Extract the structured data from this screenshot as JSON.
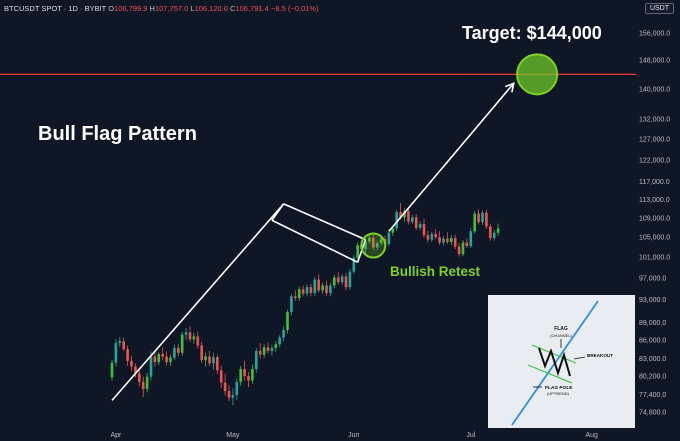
{
  "header": {
    "symbol": "BTCUSDT SPOT · 1D · BYBIT",
    "open_label": "O",
    "open": "106,799.9",
    "high_label": "H",
    "high": "107,757.0",
    "low_label": "L",
    "low": "106,120.0",
    "close_label": "C",
    "close": "106,791.4",
    "change": "−8.5 (−0.01%)"
  },
  "currency_button": "USDT",
  "colors": {
    "background": "#0f1626",
    "bull_candle": "#26a69a",
    "bull_candle_bright": "#3fbf3f",
    "bear_candle": "#ef5350",
    "target_line": "#e53935",
    "highlight": "#7ed321",
    "inset_line": "#2f8de4"
  },
  "chart_data": {
    "type": "candlestick",
    "title": "Bull Flag Pattern",
    "y_scale": "log",
    "ylim": [
      73500,
      160000
    ],
    "y_ticks": [
      "156,000.0",
      "148,000.0",
      "140,000.0",
      "132,000.0",
      "127,000.0",
      "122,000.0",
      "117,000.0",
      "113,000.0",
      "109,000.0",
      "105,000.0",
      "101,000.0",
      "97,000.0",
      "93,000.0",
      "89,000.0",
      "86,000.0",
      "83,000.0",
      "80,200.0",
      "77,400.0",
      "74,800.0"
    ],
    "y_tick_values": [
      156000,
      148000,
      140000,
      132000,
      127000,
      122000,
      117000,
      113000,
      109000,
      105000,
      101000,
      97000,
      93000,
      89000,
      86000,
      83000,
      80200,
      77400,
      74800
    ],
    "x_ticks": [
      "Apr",
      "May",
      "Jun",
      "Jul",
      "Aug"
    ],
    "x_tick_dates": [
      "2025-04-01",
      "2025-05-01",
      "2025-06-01",
      "2025-07-01",
      "2025-08-01"
    ],
    "candle_start_date": "2025-03-01",
    "candles": [
      [
        80000,
        82800,
        79500,
        82300
      ],
      [
        82300,
        86200,
        81700,
        85500
      ],
      [
        85500,
        86500,
        84800,
        85800
      ],
      [
        85800,
        86400,
        84200,
        84500
      ],
      [
        84500,
        85100,
        81800,
        82600
      ],
      [
        82600,
        83400,
        80900,
        81700
      ],
      [
        81700,
        82200,
        80000,
        80600
      ],
      [
        80600,
        81500,
        78600,
        79300
      ],
      [
        79300,
        80100,
        77000,
        78200
      ],
      [
        78200,
        80700,
        77700,
        80100
      ],
      [
        80100,
        84100,
        79500,
        83300
      ],
      [
        83300,
        84300,
        81700,
        82400
      ],
      [
        82400,
        84000,
        81900,
        83700
      ],
      [
        83700,
        84800,
        82700,
        83300
      ],
      [
        83300,
        84100,
        81900,
        82400
      ],
      [
        82400,
        83600,
        81800,
        83100
      ],
      [
        83100,
        85200,
        82700,
        84700
      ],
      [
        84700,
        85300,
        83300,
        83900
      ],
      [
        83900,
        87400,
        83400,
        86900
      ],
      [
        86900,
        88000,
        86000,
        87300
      ],
      [
        87300,
        88300,
        85700,
        86100
      ],
      [
        86100,
        87200,
        85400,
        86600
      ],
      [
        86600,
        87400,
        84600,
        85100
      ],
      [
        85100,
        85700,
        82300,
        82700
      ],
      [
        82700,
        83900,
        81700,
        83300
      ],
      [
        83300,
        84200,
        81800,
        82200
      ],
      [
        82200,
        83900,
        81200,
        83200
      ],
      [
        83200,
        83600,
        80500,
        81100
      ],
      [
        81100,
        81800,
        78400,
        79200
      ],
      [
        79200,
        80600,
        77200,
        77900
      ],
      [
        77900,
        78800,
        76400,
        76900
      ],
      [
        76900,
        78300,
        75800,
        77300
      ],
      [
        77300,
        79800,
        76600,
        79300
      ],
      [
        79300,
        81800,
        78700,
        81300
      ],
      [
        81300,
        82600,
        79500,
        80200
      ],
      [
        80200,
        80800,
        78500,
        79500
      ],
      [
        79500,
        82000,
        79000,
        81300
      ],
      [
        81300,
        84700,
        80700,
        84200
      ],
      [
        84200,
        85500,
        83000,
        83600
      ],
      [
        83600,
        85300,
        83100,
        84800
      ],
      [
        84800,
        85600,
        83800,
        84200
      ],
      [
        84200,
        85200,
        83500,
        84700
      ],
      [
        84700,
        85800,
        84100,
        85300
      ],
      [
        85300,
        86800,
        84800,
        86400
      ],
      [
        86400,
        88300,
        85800,
        87700
      ],
      [
        87700,
        91200,
        87100,
        90800
      ],
      [
        90800,
        94100,
        90200,
        93600
      ],
      [
        93600,
        94700,
        92800,
        93300
      ],
      [
        93300,
        95400,
        92800,
        94900
      ],
      [
        94900,
        95600,
        93600,
        94100
      ],
      [
        94100,
        95800,
        93600,
        95300
      ],
      [
        95300,
        95900,
        93600,
        94200
      ],
      [
        94200,
        97200,
        93700,
        96700
      ],
      [
        96700,
        97700,
        94300,
        94700
      ],
      [
        94700,
        96100,
        94100,
        95600
      ],
      [
        95600,
        96500,
        93700,
        94200
      ],
      [
        94200,
        96100,
        93600,
        95600
      ],
      [
        95600,
        97600,
        95100,
        97100
      ],
      [
        97100,
        98100,
        95800,
        96200
      ],
      [
        96200,
        97700,
        95700,
        97300
      ],
      [
        97300,
        98000,
        94700,
        95300
      ],
      [
        95300,
        98700,
        94800,
        98200
      ],
      [
        98200,
        101400,
        97800,
        100900
      ],
      [
        100900,
        104000,
        100400,
        103400
      ],
      [
        103400,
        104300,
        101900,
        102600
      ],
      [
        102600,
        104500,
        101500,
        104100
      ],
      [
        104100,
        105700,
        103600,
        104900
      ],
      [
        104900,
        105400,
        102400,
        102900
      ],
      [
        102900,
        104300,
        102400,
        103800
      ],
      [
        103800,
        105200,
        103300,
        104600
      ],
      [
        104600,
        105300,
        103100,
        103600
      ],
      [
        103600,
        106400,
        103100,
        105900
      ],
      [
        105900,
        107300,
        105300,
        106800
      ],
      [
        106800,
        110700,
        106300,
        110200
      ],
      [
        110200,
        112200,
        108600,
        109100
      ],
      [
        109100,
        111000,
        108200,
        110400
      ],
      [
        110400,
        110900,
        107600,
        108200
      ],
      [
        108200,
        109600,
        107700,
        109100
      ],
      [
        109100,
        109800,
        106400,
        106900
      ],
      [
        106900,
        108300,
        106400,
        107700
      ],
      [
        107700,
        108800,
        104900,
        105400
      ],
      [
        105400,
        106300,
        103900,
        104500
      ],
      [
        104500,
        106100,
        104000,
        105600
      ],
      [
        105600,
        106600,
        104600,
        105000
      ],
      [
        105000,
        106200,
        103400,
        103900
      ],
      [
        103900,
        105200,
        103300,
        104700
      ],
      [
        104700,
        106000,
        103600,
        104000
      ],
      [
        104000,
        105400,
        103400,
        104800
      ],
      [
        104800,
        105500,
        102600,
        103100
      ],
      [
        103100,
        103800,
        101100,
        101600
      ],
      [
        101600,
        104400,
        101200,
        103900
      ],
      [
        103900,
        104700,
        102800,
        103200
      ],
      [
        103200,
        106800,
        102800,
        106200
      ],
      [
        106200,
        110400,
        105700,
        109900
      ],
      [
        109900,
        110800,
        107600,
        108100
      ],
      [
        108100,
        110600,
        107500,
        110100
      ],
      [
        110100,
        110700,
        106700,
        107200
      ],
      [
        107200,
        107800,
        104300,
        104800
      ],
      [
        104800,
        106500,
        104300,
        105900
      ],
      [
        105900,
        107800,
        105300,
        106800
      ]
    ],
    "annotations": {
      "target_label": "Target: $144,000",
      "target_value": 144000,
      "bullish_retest": "Bullish Retest",
      "pole_start": [
        30,
        76500
      ],
      "pole_end": [
        74,
        112000
      ],
      "channel_upper": [
        [
          74,
          112000
        ],
        [
          95,
          104500
        ]
      ],
      "channel_lower": [
        [
          71,
          108500
        ],
        [
          93,
          100000
        ]
      ],
      "breakout_arrow_to": [
        133,
        141500
      ],
      "retest_point": [
        97,
        103300
      ]
    },
    "inset": {
      "flag_label": "FLAG",
      "channel_label": "(CHANNEL)",
      "breakout_label": "BREAKOUT",
      "pole_label": "FLAG POLE",
      "uptrend_label": "(UPTREND)"
    }
  }
}
